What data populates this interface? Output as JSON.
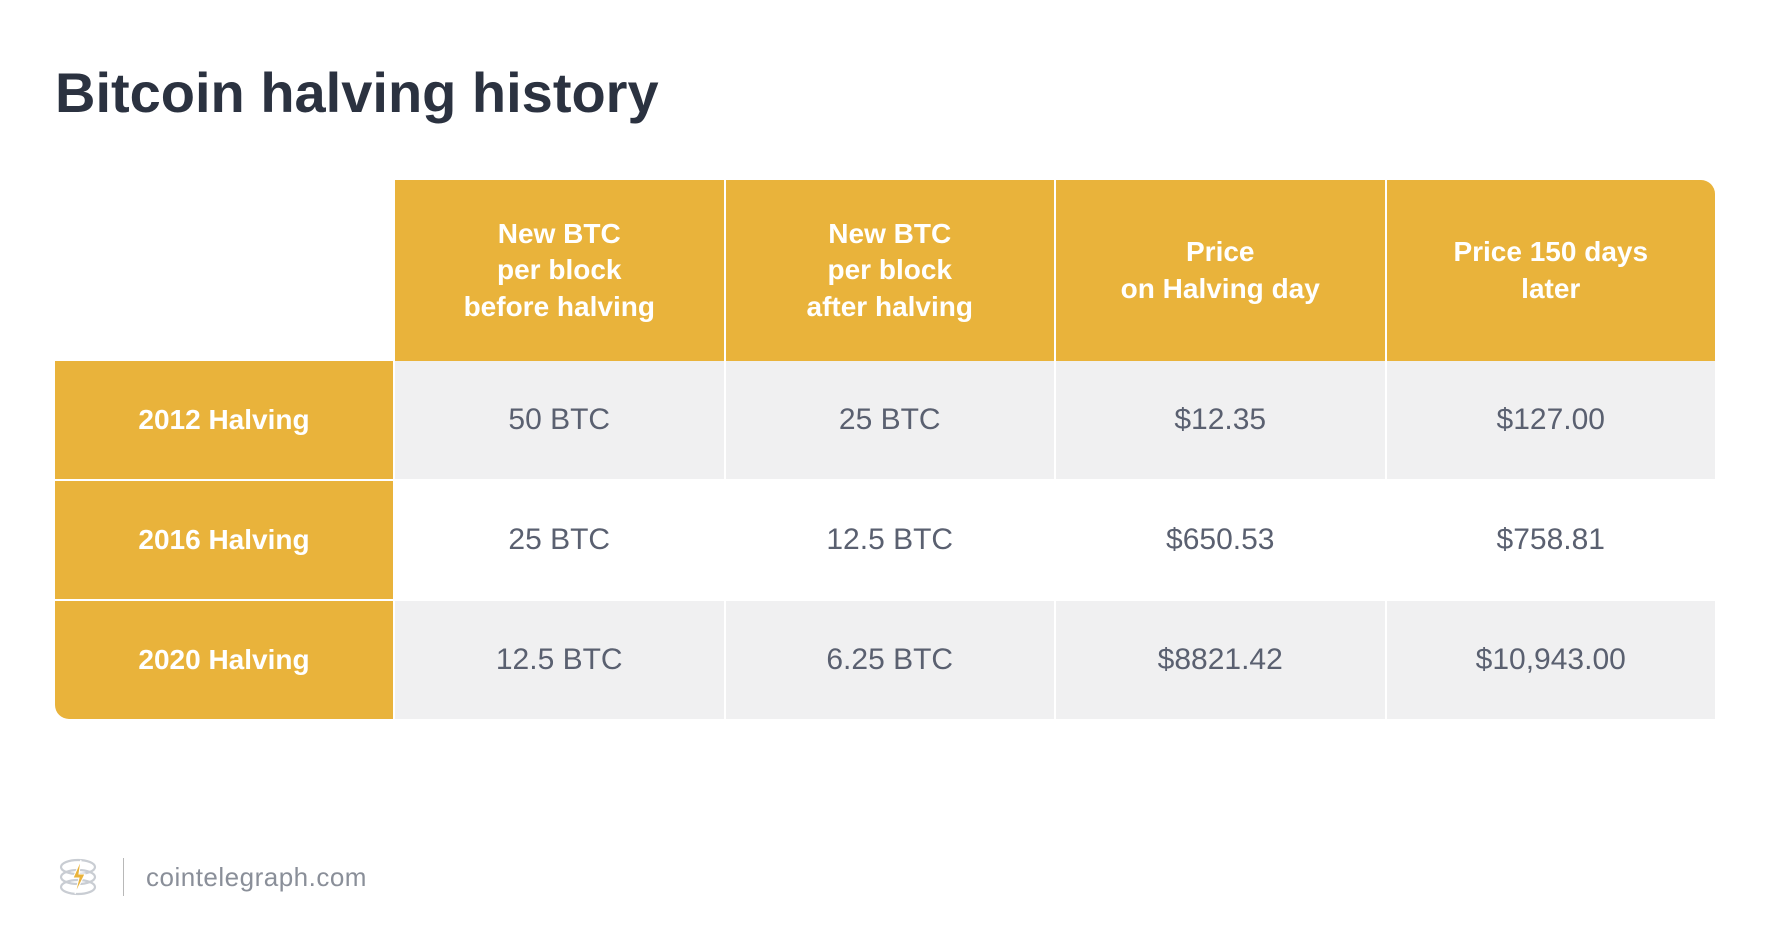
{
  "title": "Bitcoin halving history",
  "table": {
    "columns": [
      "New BTC\nper block\nbefore halving",
      "New BTC\nper block\nafter halving",
      "Price\non Halving day",
      "Price 150 days\nlater"
    ],
    "rows": [
      {
        "label": "2012 Halving",
        "cells": [
          "50 BTC",
          "25 BTC",
          "$12.35",
          "$127.00"
        ]
      },
      {
        "label": "2016 Halving",
        "cells": [
          "25 BTC",
          "12.5 BTC",
          "$650.53",
          "$758.81"
        ]
      },
      {
        "label": "2020 Halving",
        "cells": [
          "12.5 BTC",
          "6.25 BTC",
          "$8821.42",
          "$10,943.00"
        ]
      }
    ],
    "colors": {
      "header_bg": "#e9b33b",
      "header_text": "#ffffff",
      "row_label_bg": "#e9b33b",
      "row_label_text": "#ffffff",
      "cell_text": "#5a6070",
      "row_odd_bg": "#f0f0f1",
      "row_even_bg": "#ffffff",
      "title_color": "#2b3240",
      "border_color": "#ffffff"
    },
    "typography": {
      "title_fontsize": 56,
      "header_fontsize": 28,
      "cell_fontsize": 30,
      "row_label_fontsize": 28,
      "title_weight": 700,
      "header_weight": 600,
      "cell_weight": 400
    },
    "layout": {
      "row_label_width": 340,
      "border_radius": 14,
      "cell_padding_v": 42
    }
  },
  "footer": {
    "source": "cointelegraph.com",
    "source_color": "#8a8f99",
    "logo_stroke": "#c9cdd3",
    "logo_bolt": "#e9b33b"
  }
}
